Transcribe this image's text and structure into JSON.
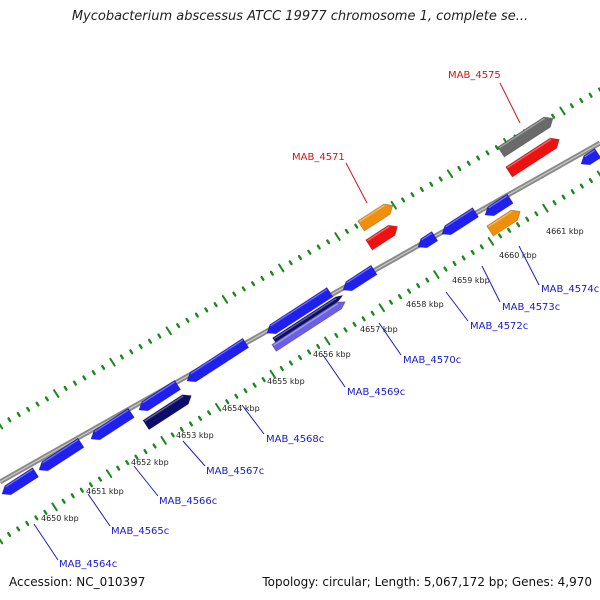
{
  "title": "Mycobacterium abscessus ATCC 19977 chromosome 1, complete se...",
  "footer": {
    "accession": "Accession: NC_010397",
    "stats": "Topology: circular; Length: 5,067,172 bp; Genes: 4,970"
  },
  "colors": {
    "forward_gene": "#1f1fee",
    "selected_gene": "#0c0c6a",
    "selected_gene_light": "#6b5fe6",
    "rna_gene_grey": "#6a6a6a",
    "rna_gene_red": "#ee1111",
    "rna_gene_orange": "#f0900a",
    "backbone": "#8a8a8a",
    "tick": "#1a8a1a",
    "gene_label": "#1a1acc",
    "highlight_label": "#dd1111"
  },
  "kbp_ticks": [
    "4650 kbp",
    "4651 kbp",
    "4652 kbp",
    "4653 kbp",
    "4654 kbp",
    "4655 kbp",
    "4656 kbp",
    "4657 kbp",
    "4658 kbp",
    "4659 kbp",
    "4660 kbp",
    "4661 kbp"
  ],
  "gene_labels": [
    "MAB_4564c",
    "MAB_4565c",
    "MAB_4566c",
    "MAB_4567c",
    "MAB_4568c",
    "MAB_4569c",
    "MAB_4570c",
    "MAB_4572c",
    "MAB_4573c",
    "MAB_4574c"
  ],
  "highlight_labels": [
    "MAB_4571",
    "MAB_4575"
  ]
}
